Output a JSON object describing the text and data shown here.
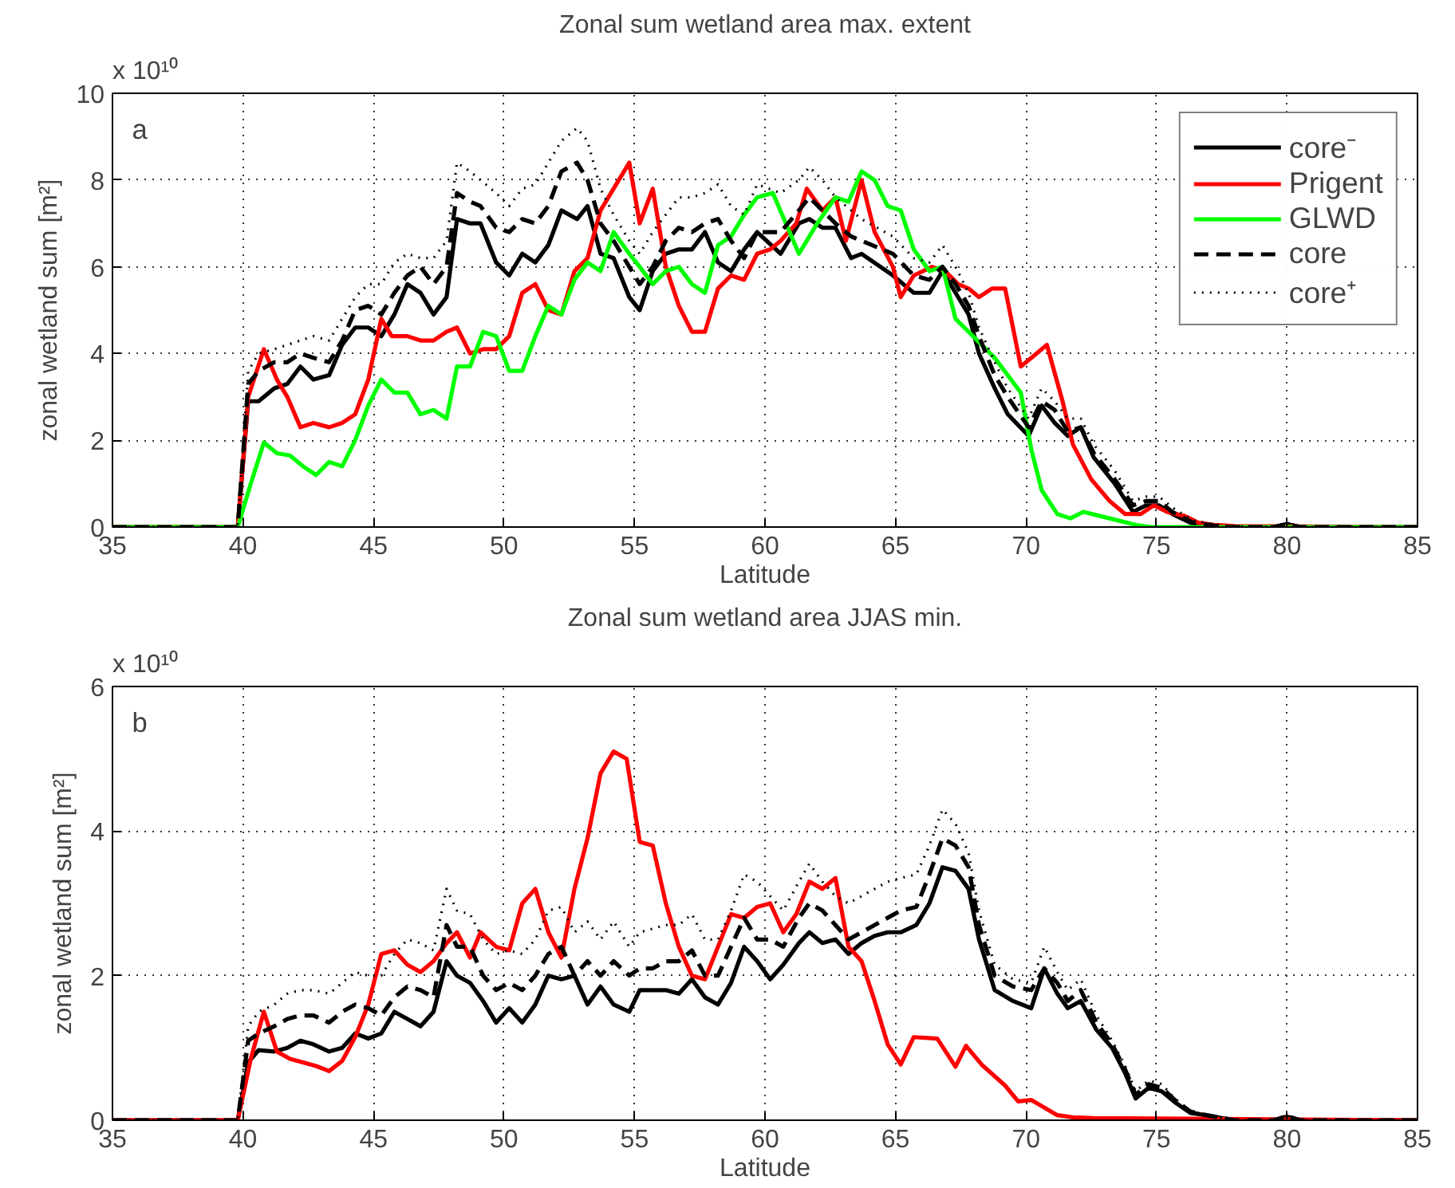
{
  "chart_data": [
    {
      "type": "line",
      "title": "Zonal sum wetland area max. extent",
      "xlabel": "Latitude",
      "ylabel": "zonal wetland sum [m²]",
      "annotations": [
        "a",
        "x 10¹⁰"
      ],
      "xlim": [
        35,
        85
      ],
      "ylim": [
        0,
        10
      ],
      "xticks": [
        35,
        40,
        45,
        50,
        55,
        60,
        65,
        70,
        75,
        80,
        85
      ],
      "yticks": [
        0,
        2,
        4,
        6,
        8,
        10
      ],
      "grid": true,
      "legend": "top right",
      "series": [
        {
          "name": "core⁻",
          "color": "#000000",
          "line_style": "solid",
          "x": [
            35,
            39.8,
            40.2,
            40.6,
            41.2,
            41.7,
            42.2,
            42.7,
            43.3,
            43.8,
            44.3,
            44.8,
            45.3,
            45.8,
            46.3,
            46.8,
            47.3,
            47.8,
            48.2,
            48.7,
            49.1,
            49.7,
            50.2,
            50.7,
            51.2,
            51.7,
            52.2,
            52.8,
            53.2,
            53.7,
            54.2,
            54.8,
            55.2,
            55.7,
            56.2,
            56.7,
            57.2,
            57.7,
            58.2,
            58.7,
            59.2,
            59.7,
            60.6,
            61.3,
            61.7,
            62.2,
            62.7,
            63.3,
            63.7,
            64.9,
            65.7,
            66.3,
            66.8,
            67.3,
            67.8,
            68.2,
            68.8,
            69.3,
            70.1,
            70.6,
            71.1,
            71.6,
            72.1,
            72.6,
            73.4,
            74.1,
            74.6,
            75.1,
            75.6,
            76.4,
            77.6,
            79.5,
            80,
            80.5,
            85
          ],
          "values": [
            0,
            0,
            2.9,
            2.9,
            3.2,
            3.3,
            3.7,
            3.4,
            3.5,
            4.2,
            4.6,
            4.6,
            4.4,
            4.9,
            5.6,
            5.4,
            4.9,
            5.3,
            7.1,
            7.0,
            7.0,
            6.1,
            5.8,
            6.3,
            6.1,
            6.5,
            7.3,
            7.1,
            7.4,
            6.3,
            6.2,
            5.3,
            5.0,
            5.9,
            6.3,
            6.4,
            6.4,
            6.8,
            6.1,
            5.9,
            6.4,
            6.8,
            6.3,
            7.0,
            7.1,
            6.9,
            6.9,
            6.2,
            6.3,
            5.8,
            5.4,
            5.4,
            5.9,
            5.4,
            4.9,
            4.0,
            3.2,
            2.6,
            2.1,
            2.8,
            2.4,
            2.1,
            2.3,
            1.6,
            1.0,
            0.35,
            0.5,
            0.5,
            0.3,
            0.07,
            0,
            0,
            0.07,
            0,
            0
          ]
        },
        {
          "name": "Prigent",
          "color": "#ff0000",
          "line_style": "solid",
          "x": [
            35,
            39.8,
            40.2,
            40.8,
            41.3,
            41.7,
            42.2,
            42.7,
            43.3,
            43.8,
            44.3,
            44.8,
            45.3,
            45.7,
            46.3,
            46.8,
            47.3,
            47.8,
            48.2,
            48.7,
            49.2,
            49.7,
            50.2,
            50.7,
            51.2,
            51.7,
            52.2,
            52.7,
            53.2,
            53.7,
            54.2,
            54.8,
            55.2,
            55.7,
            56.2,
            56.7,
            57.2,
            57.7,
            58.2,
            58.7,
            59.2,
            59.7,
            60.2,
            60.6,
            61.2,
            61.6,
            62.2,
            62.7,
            63.1,
            63.7,
            64.2,
            64.9,
            65.2,
            65.7,
            66.4,
            66.9,
            67.4,
            67.8,
            68.2,
            68.7,
            69.2,
            69.8,
            70.4,
            70.8,
            71.4,
            71.8,
            72.5,
            73.2,
            73.8,
            74.4,
            74.9,
            75.4,
            76.1,
            76.6,
            77.2,
            78,
            85
          ],
          "values": [
            0,
            0,
            3.0,
            4.1,
            3.4,
            3.0,
            2.3,
            2.4,
            2.3,
            2.4,
            2.6,
            3.4,
            4.8,
            4.4,
            4.4,
            4.3,
            4.3,
            4.5,
            4.6,
            4.0,
            4.1,
            4.1,
            4.4,
            5.4,
            5.6,
            5.0,
            4.9,
            5.9,
            6.2,
            7.3,
            7.8,
            8.4,
            7.0,
            7.8,
            6.0,
            5.1,
            4.5,
            4.5,
            5.5,
            5.8,
            5.7,
            6.3,
            6.4,
            6.6,
            7.0,
            7.8,
            7.3,
            7.6,
            6.6,
            8.0,
            6.8,
            6.0,
            5.3,
            5.8,
            6.0,
            5.9,
            5.6,
            5.5,
            5.3,
            5.5,
            5.5,
            3.7,
            4.0,
            4.2,
            2.9,
            1.9,
            1.1,
            0.6,
            0.3,
            0.3,
            0.5,
            0.35,
            0.25,
            0.1,
            0.05,
            0.02,
            0
          ]
        },
        {
          "name": "GLWD",
          "color": "#00ff00",
          "line_style": "solid",
          "x": [
            35,
            39.8,
            40.3,
            40.8,
            41.3,
            41.8,
            42.3,
            42.8,
            43.3,
            43.8,
            44.3,
            44.8,
            45.3,
            45.8,
            46.3,
            46.8,
            47.3,
            47.8,
            48.2,
            48.7,
            49.2,
            49.7,
            50.2,
            50.7,
            51.2,
            51.7,
            52.2,
            52.7,
            53.2,
            53.7,
            54.2,
            54.8,
            55.2,
            55.7,
            56.2,
            56.7,
            57.2,
            57.7,
            58.2,
            58.7,
            59.2,
            59.7,
            60.3,
            61.3,
            62,
            62.7,
            63.2,
            63.7,
            64.2,
            64.7,
            65.2,
            65.7,
            66.3,
            66.8,
            67.3,
            67.8,
            68.8,
            69.8,
            70.2,
            70.6,
            71.2,
            71.7,
            72.2,
            73.2,
            74.2,
            74.8,
            85
          ],
          "values": [
            0,
            0,
            1.0,
            1.95,
            1.7,
            1.65,
            1.4,
            1.2,
            1.5,
            1.4,
            2.0,
            2.8,
            3.4,
            3.1,
            3.1,
            2.6,
            2.7,
            2.5,
            3.7,
            3.7,
            4.5,
            4.4,
            3.6,
            3.6,
            4.4,
            5.1,
            4.9,
            5.7,
            6.1,
            5.9,
            6.8,
            6.3,
            6.0,
            5.6,
            5.9,
            6.0,
            5.6,
            5.4,
            6.5,
            6.7,
            7.2,
            7.6,
            7.7,
            6.3,
            7.0,
            7.6,
            7.5,
            8.2,
            8.0,
            7.4,
            7.3,
            6.4,
            5.9,
            6.0,
            4.8,
            4.5,
            3.9,
            3.1,
            1.8,
            0.85,
            0.3,
            0.2,
            0.35,
            0.2,
            0.05,
            0,
            0
          ]
        },
        {
          "name": "core",
          "color": "#000000",
          "line_style": "dashed",
          "x": [
            35,
            39.8,
            40.2,
            40.6,
            41.2,
            41.7,
            42.2,
            42.7,
            43.3,
            43.8,
            44.3,
            44.8,
            45.3,
            45.8,
            46.3,
            46.8,
            47.3,
            47.8,
            48.2,
            48.7,
            49.1,
            49.7,
            50.2,
            50.7,
            51.2,
            51.7,
            52.2,
            52.8,
            53.2,
            53.7,
            54.2,
            54.8,
            55.2,
            55.7,
            56.2,
            56.7,
            57.2,
            57.7,
            58.2,
            58.7,
            59.2,
            59.7,
            60.6,
            61.3,
            61.7,
            62.2,
            62.7,
            63.3,
            63.7,
            64.9,
            65.7,
            66.3,
            66.8,
            67.3,
            67.8,
            68.2,
            68.8,
            69.3,
            70.1,
            70.6,
            71.1,
            71.6,
            72.1,
            72.6,
            73.4,
            74.1,
            74.6,
            75.1,
            75.6,
            76.4,
            77.6,
            79.5,
            80,
            80.5,
            85
          ],
          "values": [
            0,
            0,
            3.3,
            3.6,
            3.8,
            3.8,
            4.0,
            3.9,
            3.8,
            4.3,
            5.0,
            5.1,
            4.9,
            5.4,
            5.8,
            6.0,
            5.6,
            6.0,
            7.7,
            7.5,
            7.4,
            6.9,
            6.8,
            7.1,
            7.0,
            7.4,
            8.2,
            8.4,
            8.0,
            7.0,
            6.6,
            6.0,
            5.6,
            6.0,
            6.6,
            6.9,
            6.8,
            7.0,
            7.1,
            6.6,
            6.2,
            6.8,
            6.8,
            7.3,
            7.6,
            7.3,
            7.0,
            6.7,
            6.6,
            6.3,
            5.8,
            5.7,
            6.0,
            5.6,
            5.1,
            4.4,
            3.5,
            3.0,
            2.3,
            2.9,
            2.7,
            2.2,
            2.3,
            1.7,
            1.1,
            0.5,
            0.6,
            0.6,
            0.35,
            0.1,
            0,
            0,
            0.07,
            0,
            0
          ]
        },
        {
          "name": "core⁺",
          "color": "#000000",
          "line_style": "dotted",
          "x": [
            35,
            39.8,
            40.2,
            40.6,
            41.2,
            41.7,
            42.2,
            42.7,
            43.3,
            43.8,
            44.3,
            44.8,
            45.3,
            45.8,
            46.3,
            46.8,
            47.3,
            47.8,
            48.2,
            48.7,
            49.1,
            49.7,
            50.2,
            50.7,
            51.2,
            51.7,
            52.2,
            52.8,
            53.2,
            53.7,
            54.2,
            54.8,
            55.2,
            55.7,
            56.2,
            56.7,
            57.2,
            57.7,
            58.2,
            58.7,
            59.2,
            59.7,
            60.6,
            61.3,
            61.7,
            62.2,
            62.7,
            63.3,
            63.7,
            64.9,
            65.7,
            66.3,
            66.8,
            67.3,
            67.8,
            68.2,
            68.8,
            69.3,
            70.1,
            70.6,
            71.1,
            71.6,
            72.1,
            72.6,
            73.4,
            74.1,
            74.6,
            75.1,
            75.6,
            76.4,
            77.6,
            79.5,
            80,
            80.5,
            85
          ],
          "values": [
            0,
            0,
            3.6,
            4.0,
            4.1,
            4.2,
            4.3,
            4.4,
            4.3,
            4.8,
            5.3,
            5.6,
            5.6,
            6.1,
            6.3,
            6.2,
            6.2,
            6.6,
            8.4,
            8.2,
            8.0,
            7.7,
            7.4,
            7.8,
            7.9,
            8.4,
            8.9,
            9.2,
            8.9,
            7.8,
            7.2,
            6.6,
            6.3,
            6.8,
            7.2,
            7.6,
            7.6,
            7.7,
            7.9,
            7.4,
            7.2,
            7.9,
            7.7,
            8.0,
            8.3,
            8.0,
            7.6,
            7.3,
            7.1,
            6.7,
            6.2,
            6.1,
            6.5,
            6.0,
            5.4,
            4.6,
            3.8,
            3.2,
            2.5,
            3.2,
            2.9,
            2.5,
            2.5,
            1.9,
            1.3,
            0.6,
            0.7,
            0.7,
            0.45,
            0.15,
            0.02,
            0,
            0.1,
            0,
            0
          ]
        }
      ]
    },
    {
      "type": "line",
      "title": "Zonal sum wetland area JJAS min.",
      "xlabel": "Latitude",
      "ylabel": "zonal wetland sum [m²]",
      "annotations": [
        "b",
        "x 10¹⁰"
      ],
      "xlim": [
        35,
        85
      ],
      "ylim": [
        0,
        6
      ],
      "xticks": [
        35,
        40,
        45,
        50,
        55,
        60,
        65,
        70,
        75,
        80,
        85
      ],
      "yticks": [
        0,
        2,
        4,
        6
      ],
      "grid": true,
      "series": [
        {
          "color": "#000000",
          "line_style": "solid",
          "x": [
            35,
            39.8,
            40.2,
            40.6,
            41.2,
            41.7,
            42.2,
            42.7,
            43.3,
            43.8,
            44.3,
            44.8,
            45.3,
            45.8,
            46.3,
            46.8,
            47.3,
            47.8,
            48.2,
            48.7,
            49.2,
            49.7,
            50.2,
            50.7,
            51.2,
            51.7,
            52.2,
            52.7,
            53.2,
            53.7,
            54.2,
            54.8,
            55.2,
            55.7,
            56.2,
            56.7,
            57.2,
            57.7,
            58.2,
            58.7,
            59.2,
            59.7,
            60.2,
            60.7,
            61.3,
            61.7,
            62.2,
            62.7,
            63.2,
            63.7,
            64.2,
            64.7,
            65.2,
            65.8,
            66.3,
            66.8,
            67.3,
            67.8,
            68.2,
            68.8,
            69.5,
            70.2,
            70.7,
            71.2,
            71.6,
            72.1,
            72.7,
            73.3,
            73.8,
            74.2,
            74.7,
            75.2,
            75.7,
            76.3,
            76.9,
            77.5,
            78,
            79.5,
            80,
            80.5,
            85
          ],
          "values": [
            0,
            0,
            0.8,
            0.97,
            0.95,
            1.0,
            1.1,
            1.05,
            0.95,
            1.0,
            1.2,
            1.13,
            1.2,
            1.5,
            1.4,
            1.3,
            1.5,
            2.2,
            2.0,
            1.9,
            1.65,
            1.35,
            1.55,
            1.35,
            1.6,
            2.0,
            1.95,
            2.0,
            1.6,
            1.85,
            1.6,
            1.5,
            1.8,
            1.8,
            1.8,
            1.75,
            1.95,
            1.7,
            1.6,
            1.9,
            2.4,
            2.2,
            1.95,
            2.15,
            2.45,
            2.6,
            2.45,
            2.5,
            2.3,
            2.45,
            2.55,
            2.6,
            2.6,
            2.7,
            3.0,
            3.5,
            3.45,
            3.2,
            2.5,
            1.8,
            1.65,
            1.55,
            2.1,
            1.75,
            1.55,
            1.65,
            1.25,
            1.0,
            0.65,
            0.3,
            0.45,
            0.4,
            0.25,
            0.1,
            0.07,
            0.03,
            0,
            0,
            0.05,
            0,
            0
          ]
        },
        {
          "color": "#ff0000",
          "line_style": "solid",
          "x": [
            35,
            39.8,
            40.3,
            40.8,
            41.3,
            41.8,
            42.3,
            42.8,
            43.3,
            43.8,
            44.3,
            44.8,
            45.3,
            45.8,
            46.3,
            46.8,
            47.3,
            47.8,
            48.2,
            48.7,
            49.1,
            49.7,
            50.2,
            50.7,
            51.2,
            51.7,
            52.2,
            52.7,
            53.2,
            53.7,
            54.2,
            54.7,
            55.2,
            55.7,
            56.2,
            56.7,
            57.2,
            57.7,
            58.2,
            58.7,
            59.2,
            59.7,
            60.2,
            60.7,
            61.2,
            61.7,
            62.2,
            62.7,
            63.2,
            63.7,
            64.2,
            64.7,
            65.2,
            65.7,
            66.6,
            67.3,
            67.7,
            68.3,
            69.2,
            69.7,
            70.2,
            71.2,
            71.8,
            72.6,
            85
          ],
          "values": [
            0,
            0,
            0.85,
            1.5,
            0.95,
            0.85,
            0.8,
            0.75,
            0.68,
            0.82,
            1.15,
            1.6,
            2.3,
            2.35,
            2.15,
            2.05,
            2.2,
            2.45,
            2.6,
            2.25,
            2.6,
            2.4,
            2.35,
            3.0,
            3.2,
            2.6,
            2.25,
            3.2,
            3.9,
            4.8,
            5.1,
            5.0,
            3.85,
            3.8,
            3.0,
            2.4,
            2.0,
            1.95,
            2.4,
            2.85,
            2.8,
            2.95,
            3.0,
            2.6,
            2.85,
            3.3,
            3.2,
            3.35,
            2.4,
            2.2,
            1.65,
            1.05,
            0.77,
            1.15,
            1.13,
            0.74,
            1.03,
            0.77,
            0.48,
            0.26,
            0.28,
            0.07,
            0.04,
            0.03,
            0
          ]
        },
        {
          "color": "#000000",
          "line_style": "dashed",
          "x": [
            35,
            39.8,
            40.2,
            40.6,
            41.2,
            41.7,
            42.2,
            42.7,
            43.3,
            43.8,
            44.3,
            44.8,
            45.3,
            45.8,
            46.3,
            46.8,
            47.3,
            47.8,
            48.2,
            48.7,
            49.2,
            49.7,
            50.2,
            50.7,
            51.2,
            51.7,
            52.2,
            52.7,
            53.2,
            53.7,
            54.2,
            54.8,
            55.2,
            55.7,
            56.2,
            56.7,
            57.2,
            57.7,
            58.2,
            58.7,
            59.2,
            59.7,
            60.2,
            60.7,
            61.3,
            61.7,
            62.2,
            62.7,
            63.2,
            63.7,
            64.2,
            64.7,
            65.2,
            65.8,
            66.3,
            66.8,
            67.3,
            67.8,
            68.2,
            68.8,
            69.5,
            70.2,
            70.7,
            71.2,
            71.6,
            72.1,
            72.7,
            73.3,
            73.8,
            74.2,
            74.7,
            75.2,
            75.7,
            76.3,
            76.9,
            77.5,
            78,
            79.5,
            80,
            80.5,
            85
          ],
          "values": [
            0,
            0,
            1.1,
            1.2,
            1.3,
            1.4,
            1.45,
            1.45,
            1.35,
            1.5,
            1.6,
            1.55,
            1.45,
            1.7,
            1.85,
            1.8,
            1.7,
            2.7,
            2.4,
            2.4,
            2.0,
            1.8,
            1.9,
            1.8,
            2.0,
            2.3,
            2.4,
            2.0,
            2.2,
            2.0,
            2.2,
            2.0,
            2.1,
            2.1,
            2.2,
            2.2,
            2.35,
            2.0,
            2.0,
            2.4,
            2.8,
            2.5,
            2.5,
            2.4,
            2.8,
            3.0,
            2.9,
            2.7,
            2.5,
            2.6,
            2.7,
            2.8,
            2.9,
            2.95,
            3.4,
            3.9,
            3.8,
            3.5,
            2.7,
            2.0,
            1.85,
            1.8,
            2.1,
            1.9,
            1.65,
            1.8,
            1.35,
            1.05,
            0.7,
            0.35,
            0.5,
            0.45,
            0.28,
            0.12,
            0.07,
            0.03,
            0,
            0,
            0.06,
            0,
            0
          ]
        },
        {
          "color": "#000000",
          "line_style": "dotted",
          "x": [
            35,
            39.8,
            40.2,
            40.6,
            41.2,
            41.7,
            42.2,
            42.7,
            43.3,
            43.8,
            44.3,
            44.8,
            45.3,
            45.8,
            46.3,
            46.8,
            47.3,
            47.8,
            48.2,
            48.7,
            49.2,
            49.7,
            50.2,
            50.7,
            51.2,
            51.7,
            52.2,
            52.7,
            53.2,
            53.7,
            54.2,
            54.8,
            55.2,
            55.7,
            56.2,
            56.7,
            57.2,
            57.7,
            58.2,
            58.7,
            59.2,
            59.7,
            60.2,
            60.7,
            61.3,
            61.7,
            62.2,
            62.7,
            63.2,
            63.7,
            64.2,
            64.7,
            65.2,
            65.8,
            66.3,
            66.8,
            67.3,
            67.8,
            68.2,
            68.8,
            69.5,
            70.2,
            70.7,
            71.2,
            71.6,
            72.1,
            72.7,
            73.3,
            73.8,
            74.2,
            74.7,
            75.2,
            75.7,
            76.3,
            76.9,
            77.5,
            78,
            79.5,
            80,
            80.5,
            85
          ],
          "values": [
            0,
            0,
            1.3,
            1.5,
            1.6,
            1.75,
            1.8,
            1.8,
            1.75,
            1.9,
            2.05,
            2.0,
            2.0,
            2.3,
            2.5,
            2.45,
            2.35,
            3.2,
            2.9,
            2.85,
            2.5,
            2.3,
            2.35,
            2.3,
            2.5,
            2.9,
            2.95,
            2.6,
            2.75,
            2.5,
            2.75,
            2.4,
            2.6,
            2.65,
            2.7,
            2.7,
            2.85,
            2.5,
            2.5,
            2.9,
            3.4,
            3.3,
            3.1,
            2.9,
            3.3,
            3.55,
            3.3,
            3.1,
            3.0,
            3.1,
            3.2,
            3.3,
            3.35,
            3.4,
            3.8,
            4.3,
            4.1,
            3.7,
            2.9,
            2.15,
            1.95,
            1.9,
            2.4,
            2.05,
            1.8,
            1.95,
            1.45,
            1.1,
            0.75,
            0.4,
            0.55,
            0.5,
            0.3,
            0.13,
            0.07,
            0.03,
            0,
            0,
            0.07,
            0,
            0
          ]
        }
      ]
    }
  ]
}
